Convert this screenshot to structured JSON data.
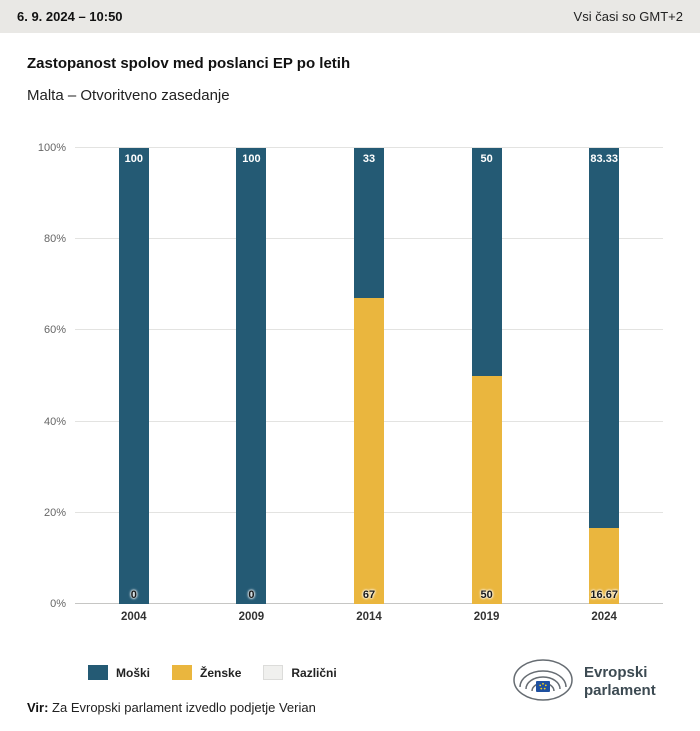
{
  "header": {
    "datetime": "6. 9. 2024 – 10:50",
    "timezone": "Vsi časi so GMT+2"
  },
  "title": "Zastopanost spolov med poslanci EP po letih",
  "subtitle": "Malta – Otvoritveno zasedanje",
  "chart_data": {
    "type": "bar",
    "stacked": true,
    "categories": [
      "2004",
      "2009",
      "2014",
      "2019",
      "2024"
    ],
    "series": [
      {
        "name": "Moški",
        "color": "#245a74",
        "values": [
          100,
          100,
          33,
          50,
          83.33
        ],
        "label_position": "top",
        "label_color": "#ffffff"
      },
      {
        "name": "Ženske",
        "color": "#eab63e",
        "values": [
          0,
          0,
          67,
          50,
          16.67
        ],
        "label_position": "bottom",
        "label_color": "#1a1a1a"
      },
      {
        "name": "Različni",
        "color": "#f0f0ee",
        "values": [
          0,
          0,
          0,
          0,
          0
        ]
      }
    ],
    "ylim": [
      0,
      100
    ],
    "yticks": [
      0,
      20,
      40,
      60,
      80,
      100
    ],
    "ytick_suffix": "%",
    "grid": true,
    "legend_position": "bottom"
  },
  "footer": {
    "source_label": "Vir:",
    "source_text": " Za Evropski parlament izvedlo podjetje Verian"
  },
  "logo": {
    "line1": "Evropski",
    "line2": "parlament"
  }
}
